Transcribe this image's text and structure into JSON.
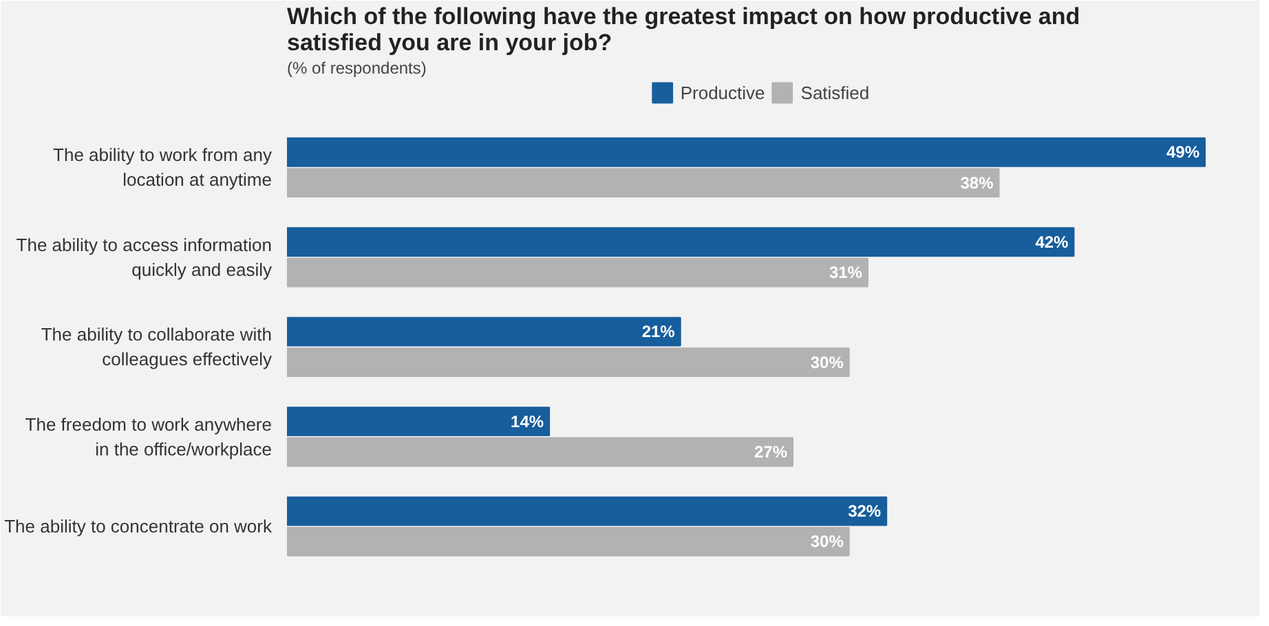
{
  "chart_data": {
    "type": "bar",
    "orientation": "horizontal",
    "title": "Which of the following have the greatest impact on how productive and satisfied you are in your job?",
    "subtitle": "(% of respondents)",
    "categories": [
      "The ability to work from any\nlocation at anytime",
      "The ability to access information\nquickly and easily",
      "The ability to collaborate with\ncolleagues effectively",
      "The freedom to work anywhere\nin the office/workplace",
      "The ability to concentrate on work"
    ],
    "series": [
      {
        "name": "Productive",
        "color": "#175e9c",
        "values": [
          49,
          42,
          21,
          14,
          32
        ],
        "value_labels": [
          "49%",
          "42%",
          "21%",
          "14%",
          "32%"
        ]
      },
      {
        "name": "Satisfied",
        "color": "#b2b2b2",
        "values": [
          38,
          31,
          30,
          27,
          30
        ],
        "value_labels": [
          "38%",
          "31%",
          "30%",
          "27%",
          "30%"
        ]
      }
    ],
    "legend": "top",
    "grid": false
  }
}
